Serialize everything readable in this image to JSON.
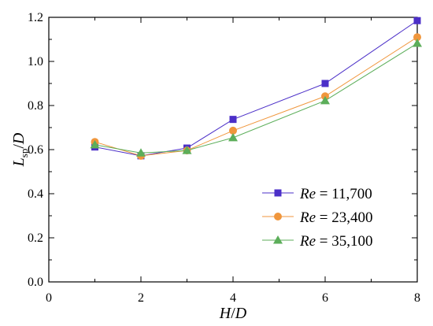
{
  "chart_data": {
    "type": "line",
    "xlabel": {
      "main": "H",
      "sep": "/",
      "den": "D"
    },
    "ylabel": {
      "main": "L",
      "sub": "sp",
      "sep": "/",
      "den": "D"
    },
    "xlim": [
      0,
      8
    ],
    "ylim": [
      0,
      1.2
    ],
    "xticks": [
      0,
      2,
      4,
      6,
      8
    ],
    "yticks": [
      0.0,
      0.2,
      0.4,
      0.6,
      0.8,
      1.0,
      1.2
    ],
    "xtick_labels": [
      "0",
      "2",
      "4",
      "6",
      "8"
    ],
    "ytick_labels": [
      "0.0",
      "0.2",
      "0.4",
      "0.6",
      "0.8",
      "1.0",
      "1.2"
    ],
    "legend_position": "lower-right",
    "grid": false,
    "series": [
      {
        "name_prefix": "Re",
        "name_value": " = 11,700",
        "marker": "square",
        "color": "#4b2fc8",
        "x": [
          1,
          2,
          3,
          4,
          6,
          8
        ],
        "y": [
          0.612,
          0.572,
          0.607,
          0.737,
          0.9,
          1.185
        ]
      },
      {
        "name_prefix": "Re",
        "name_value": " = 23,400",
        "marker": "circle",
        "color": "#f0963c",
        "x": [
          1,
          2,
          3,
          4,
          6,
          8
        ],
        "y": [
          0.635,
          0.572,
          0.596,
          0.686,
          0.842,
          1.11
        ]
      },
      {
        "name_prefix": "Re",
        "name_value": " = 35,100",
        "marker": "triangle",
        "color": "#5cae5a",
        "x": [
          1,
          2,
          3,
          4,
          6,
          8
        ],
        "y": [
          0.622,
          0.585,
          0.596,
          0.654,
          0.822,
          1.082
        ]
      }
    ]
  }
}
